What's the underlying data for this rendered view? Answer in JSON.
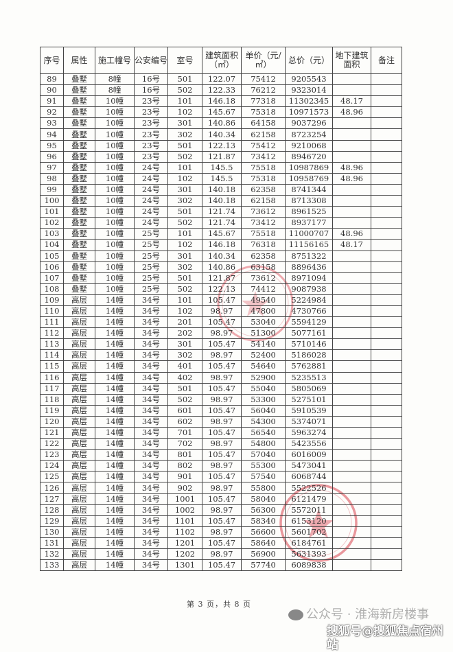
{
  "table": {
    "headers": [
      "序号",
      "属性",
      "施工幢号",
      "公安编号",
      "室号",
      "建筑面积（㎡）",
      "单价（元/㎡）",
      "总价（元）",
      "地下建筑面积",
      "备注"
    ],
    "rows": [
      [
        "89",
        "叠墅",
        "8幢",
        "16号",
        "501",
        "122.07",
        "75412",
        "9205543",
        "",
        ""
      ],
      [
        "90",
        "叠墅",
        "8幢",
        "16号",
        "502",
        "122.33",
        "76212",
        "9323014",
        "",
        ""
      ],
      [
        "91",
        "叠墅",
        "10幢",
        "23号",
        "101",
        "146.18",
        "77318",
        "11302345",
        "48.17",
        ""
      ],
      [
        "92",
        "叠墅",
        "10幢",
        "23号",
        "102",
        "145.67",
        "75318",
        "10971573",
        "48.96",
        ""
      ],
      [
        "93",
        "叠墅",
        "10幢",
        "23号",
        "301",
        "140.86",
        "64158",
        "9037296",
        "",
        ""
      ],
      [
        "94",
        "叠墅",
        "10幢",
        "23号",
        "302",
        "140.34",
        "62158",
        "8723254",
        "",
        ""
      ],
      [
        "95",
        "叠墅",
        "10幢",
        "23号",
        "501",
        "122.13",
        "75412",
        "9210068",
        "",
        ""
      ],
      [
        "96",
        "叠墅",
        "10幢",
        "23号",
        "502",
        "121.87",
        "73412",
        "8946720",
        "",
        ""
      ],
      [
        "97",
        "叠墅",
        "10幢",
        "24号",
        "101",
        "145.5",
        "75518",
        "10987869",
        "48.96",
        ""
      ],
      [
        "98",
        "叠墅",
        "10幢",
        "24号",
        "102",
        "145.5",
        "75318",
        "10958769",
        "48.96",
        ""
      ],
      [
        "99",
        "叠墅",
        "10幢",
        "24号",
        "301",
        "140.18",
        "62358",
        "8741344",
        "",
        ""
      ],
      [
        "100",
        "叠墅",
        "10幢",
        "24号",
        "302",
        "140.18",
        "62158",
        "8713308",
        "",
        ""
      ],
      [
        "101",
        "叠墅",
        "10幢",
        "24号",
        "501",
        "121.74",
        "73612",
        "8961525",
        "",
        ""
      ],
      [
        "102",
        "叠墅",
        "10幢",
        "24号",
        "502",
        "121.74",
        "73412",
        "8937177",
        "",
        ""
      ],
      [
        "103",
        "叠墅",
        "10幢",
        "25号",
        "101",
        "145.67",
        "75518",
        "11000707",
        "48.96",
        ""
      ],
      [
        "104",
        "叠墅",
        "10幢",
        "25号",
        "102",
        "146.18",
        "76318",
        "11156165",
        "48.17",
        ""
      ],
      [
        "105",
        "叠墅",
        "10幢",
        "25号",
        "301",
        "140.34",
        "62358",
        "8751322",
        "",
        ""
      ],
      [
        "106",
        "叠墅",
        "10幢",
        "25号",
        "302",
        "140.86",
        "63158",
        "8896436",
        "",
        ""
      ],
      [
        "107",
        "叠墅",
        "10幢",
        "25号",
        "501",
        "121.87",
        "73612",
        "8971094",
        "",
        ""
      ],
      [
        "108",
        "叠墅",
        "10幢",
        "25号",
        "502",
        "122.13",
        "74412",
        "9087938",
        "",
        ""
      ],
      [
        "109",
        "高层",
        "14幢",
        "34号",
        "101",
        "105.47",
        "49540",
        "5224984",
        "",
        ""
      ],
      [
        "110",
        "高层",
        "14幢",
        "34号",
        "102",
        "98.97",
        "47800",
        "4730766",
        "",
        ""
      ],
      [
        "111",
        "高层",
        "14幢",
        "34号",
        "201",
        "105.47",
        "53040",
        "5594129",
        "",
        ""
      ],
      [
        "112",
        "高层",
        "14幢",
        "34号",
        "202",
        "98.97",
        "51300",
        "5077161",
        "",
        ""
      ],
      [
        "113",
        "高层",
        "14幢",
        "34号",
        "301",
        "105.47",
        "54140",
        "5710146",
        "",
        ""
      ],
      [
        "114",
        "高层",
        "14幢",
        "34号",
        "302",
        "98.97",
        "52400",
        "5186028",
        "",
        ""
      ],
      [
        "115",
        "高层",
        "14幢",
        "34号",
        "401",
        "105.47",
        "54640",
        "5762881",
        "",
        ""
      ],
      [
        "116",
        "高层",
        "14幢",
        "34号",
        "402",
        "98.97",
        "52900",
        "5235513",
        "",
        ""
      ],
      [
        "117",
        "高层",
        "14幢",
        "34号",
        "501",
        "105.47",
        "55040",
        "5805069",
        "",
        ""
      ],
      [
        "118",
        "高层",
        "14幢",
        "34号",
        "502",
        "98.97",
        "53300",
        "5275101",
        "",
        ""
      ],
      [
        "119",
        "高层",
        "14幢",
        "34号",
        "601",
        "105.47",
        "56040",
        "5910539",
        "",
        ""
      ],
      [
        "120",
        "高层",
        "14幢",
        "34号",
        "602",
        "98.97",
        "54300",
        "5374071",
        "",
        ""
      ],
      [
        "121",
        "高层",
        "14幢",
        "34号",
        "701",
        "105.47",
        "56540",
        "5963274",
        "",
        ""
      ],
      [
        "122",
        "高层",
        "14幢",
        "34号",
        "702",
        "98.97",
        "54800",
        "5423556",
        "",
        ""
      ],
      [
        "123",
        "高层",
        "14幢",
        "34号",
        "801",
        "105.47",
        "57040",
        "6016009",
        "",
        ""
      ],
      [
        "124",
        "高层",
        "14幢",
        "34号",
        "802",
        "98.97",
        "55300",
        "5473041",
        "",
        ""
      ],
      [
        "125",
        "高层",
        "14幢",
        "34号",
        "901",
        "105.47",
        "57540",
        "6068744",
        "",
        ""
      ],
      [
        "126",
        "高层",
        "14幢",
        "34号",
        "902",
        "98.97",
        "55800",
        "5522526",
        "",
        ""
      ],
      [
        "127",
        "高层",
        "14幢",
        "34号",
        "1001",
        "105.47",
        "58040",
        "6121479",
        "",
        ""
      ],
      [
        "128",
        "高层",
        "14幢",
        "34号",
        "1002",
        "98.97",
        "56300",
        "5572011",
        "",
        ""
      ],
      [
        "129",
        "高层",
        "14幢",
        "34号",
        "1101",
        "105.47",
        "58340",
        "6153120",
        "",
        ""
      ],
      [
        "130",
        "高层",
        "14幢",
        "34号",
        "1102",
        "98.97",
        "56600",
        "5601702",
        "",
        ""
      ],
      [
        "131",
        "高层",
        "14幢",
        "34号",
        "1201",
        "105.47",
        "58640",
        "6184761",
        "",
        ""
      ],
      [
        "132",
        "高层",
        "14幢",
        "34号",
        "1202",
        "98.97",
        "56900",
        "5631393",
        "",
        ""
      ],
      [
        "133",
        "高层",
        "14幢",
        "34号",
        "1301",
        "105.47",
        "57740",
        "6089838",
        "",
        ""
      ]
    ]
  },
  "footer": {
    "page_indicator": "第 3 页，共 8 页"
  },
  "watermarks": {
    "wechat": "公众号 · 淮海新房楼事",
    "sohu": "搜狐号@搜狐焦点宿州站"
  },
  "colors": {
    "stamp": "#d9434f",
    "border": "#444444"
  }
}
